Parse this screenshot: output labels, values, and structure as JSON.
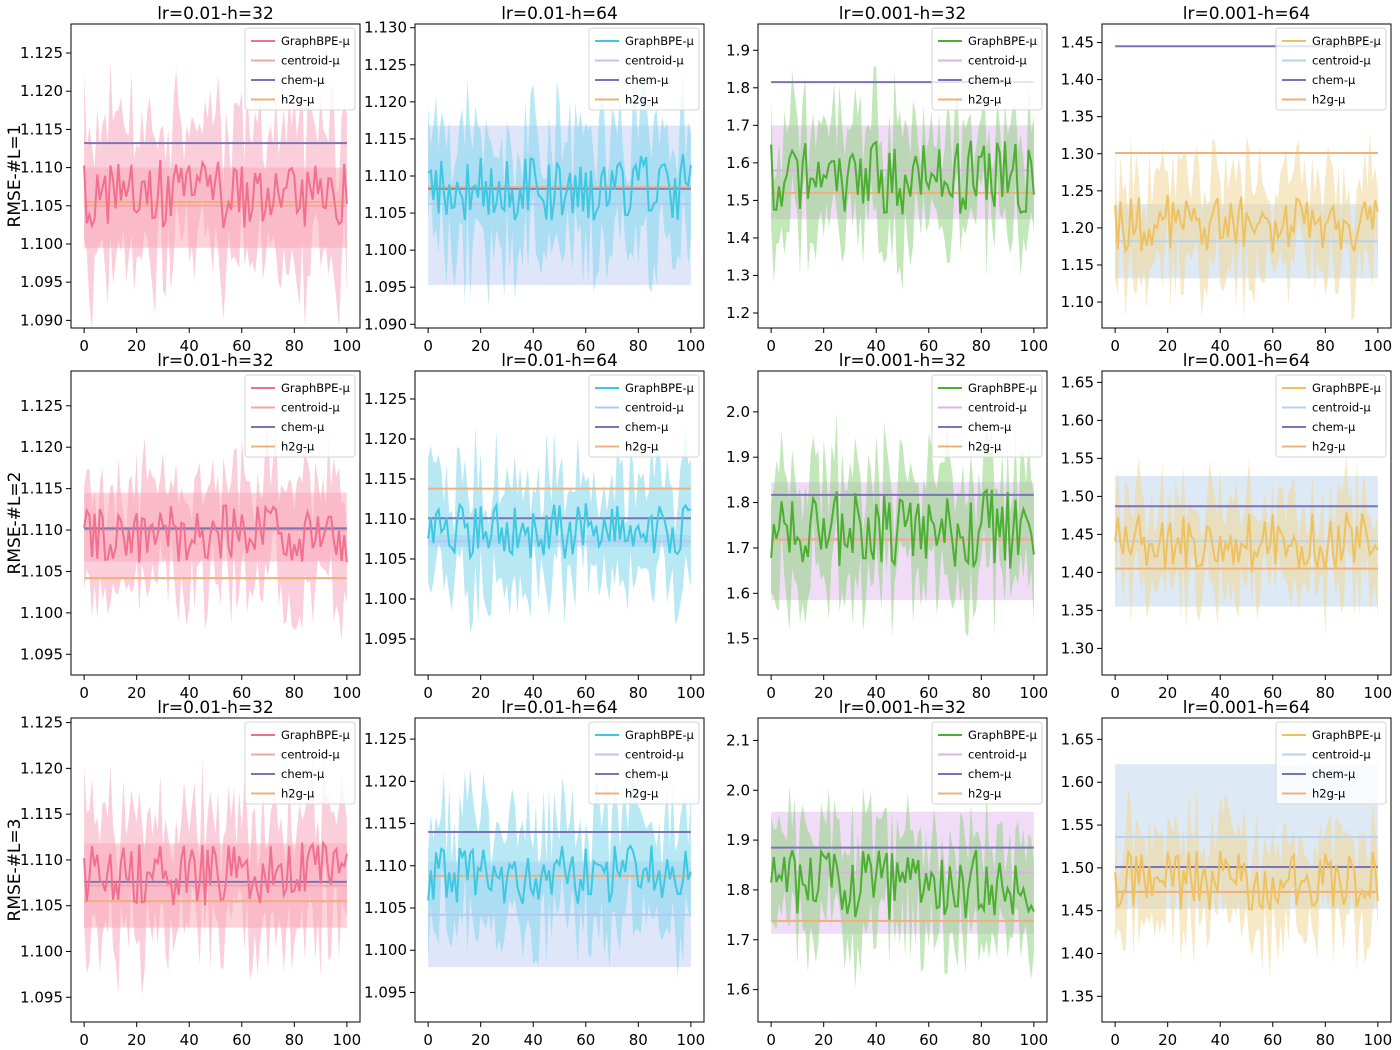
{
  "figure": {
    "row_labels": [
      "RMSE-#L=1",
      "RMSE-#L=2",
      "RMSE-#L=3"
    ],
    "col_titles": [
      "lr=0.01-h=32",
      "lr=0.01-h=64",
      "lr=0.001-h=32",
      "lr=0.001-h=64"
    ],
    "legend_labels": [
      "GraphBPE-μ",
      "centroid-μ",
      "chem-μ",
      "h2g-μ"
    ]
  },
  "chart_data": [
    {
      "type": "line",
      "row": 0,
      "col": 0,
      "title": "lr=0.01-h=32",
      "ylabel": "RMSE-#L=1",
      "xlim": [
        -5,
        105
      ],
      "xticks": [
        0,
        20,
        40,
        60,
        80,
        100
      ],
      "ylim": [
        1.089,
        1.1288
      ],
      "yticks": [
        1.09,
        1.095,
        1.1,
        1.105,
        1.11,
        1.115,
        1.12,
        1.125
      ],
      "ydec": 3,
      "palette": "pink",
      "legend": [
        "GraphBPE-μ",
        "centroid-μ",
        "chem-μ",
        "h2g-μ"
      ],
      "graphbpe": {
        "center": 1.1065,
        "swing": 0.0045,
        "band": 0.012,
        "seed": 11
      },
      "centroid": {
        "value": 1.105,
        "band_low": 1.0995,
        "band_high": 1.11
      },
      "chem": 1.1132,
      "h2g": 1.1055
    },
    {
      "type": "line",
      "row": 0,
      "col": 1,
      "title": "lr=0.01-h=64",
      "ylabel": "",
      "xlim": [
        -5,
        105
      ],
      "xticks": [
        0,
        20,
        40,
        60,
        80,
        100
      ],
      "ylim": [
        1.0895,
        1.1305
      ],
      "yticks": [
        1.09,
        1.095,
        1.1,
        1.105,
        1.11,
        1.115,
        1.12,
        1.125,
        1.13
      ],
      "ydec": 3,
      "palette": "blue",
      "legend": [
        "GraphBPE-μ",
        "centroid-μ",
        "chem-μ",
        "h2g-μ"
      ],
      "graphbpe": {
        "center": 1.1085,
        "swing": 0.0045,
        "band": 0.011,
        "seed": 23
      },
      "centroid": {
        "value": 1.1062,
        "band_low": 1.0953,
        "band_high": 1.1168
      },
      "chem": 1.1083,
      "h2g": 1.1085
    },
    {
      "type": "line",
      "row": 0,
      "col": 2,
      "title": "lr=0.001-h=32",
      "ylabel": "",
      "xlim": [
        -5,
        105
      ],
      "xticks": [
        0,
        20,
        40,
        60,
        80,
        100
      ],
      "ylim": [
        1.16,
        1.97
      ],
      "yticks": [
        1.2,
        1.3,
        1.4,
        1.5,
        1.6,
        1.7,
        1.8,
        1.9
      ],
      "ydec": 1,
      "palette": "green",
      "legend": [
        "GraphBPE-μ",
        "centroid-μ",
        "chem-μ",
        "h2g-μ"
      ],
      "graphbpe": {
        "center": 1.56,
        "swing": 0.1,
        "band": 0.19,
        "seed": 37
      },
      "centroid": {
        "value": 1.58,
        "band_low": 1.45,
        "band_high": 1.7
      },
      "chem": 1.815,
      "h2g": 1.52
    },
    {
      "type": "line",
      "row": 0,
      "col": 3,
      "title": "lr=0.001-h=64",
      "ylabel": "",
      "xlim": [
        -5,
        105
      ],
      "xticks": [
        0,
        20,
        40,
        60,
        80,
        100
      ],
      "ylim": [
        1.065,
        1.475
      ],
      "yticks": [
        1.1,
        1.15,
        1.2,
        1.25,
        1.3,
        1.35,
        1.4,
        1.45
      ],
      "ydec": 2,
      "palette": "yellow",
      "legend": [
        "GraphBPE-μ",
        "centroid-μ",
        "chem-μ",
        "h2g-μ"
      ],
      "graphbpe": {
        "center": 1.205,
        "swing": 0.04,
        "band": 0.09,
        "seed": 41
      },
      "centroid": {
        "value": 1.182,
        "band_low": 1.132,
        "band_high": 1.232
      },
      "chem": 1.445,
      "h2g": 1.301
    },
    {
      "type": "line",
      "row": 1,
      "col": 0,
      "title": "lr=0.01-h=32",
      "ylabel": "RMSE-#L=2",
      "xlim": [
        -5,
        105
      ],
      "xticks": [
        0,
        20,
        40,
        60,
        80,
        100
      ],
      "ylim": [
        1.0925,
        1.1292
      ],
      "yticks": [
        1.095,
        1.1,
        1.105,
        1.11,
        1.115,
        1.12,
        1.125
      ],
      "ydec": 3,
      "palette": "pink",
      "legend": [
        "GraphBPE-μ",
        "centroid-μ",
        "chem-μ",
        "h2g-μ"
      ],
      "graphbpe": {
        "center": 1.1095,
        "swing": 0.0035,
        "band": 0.009,
        "seed": 53
      },
      "centroid": {
        "value": 1.11,
        "band_low": 1.1062,
        "band_high": 1.1145
      },
      "chem": 1.1102,
      "h2g": 1.1042
    },
    {
      "type": "line",
      "row": 1,
      "col": 1,
      "title": "lr=0.01-h=64",
      "ylabel": "",
      "xlim": [
        -5,
        105
      ],
      "xticks": [
        0,
        20,
        40,
        60,
        80,
        100
      ],
      "ylim": [
        1.0905,
        1.1285
      ],
      "yticks": [
        1.095,
        1.1,
        1.105,
        1.11,
        1.115,
        1.12,
        1.125
      ],
      "ydec": 3,
      "palette": "blue",
      "legend": [
        "GraphBPE-μ",
        "centroid-μ",
        "chem-μ",
        "h2g-μ"
      ],
      "graphbpe": {
        "center": 1.1085,
        "swing": 0.0035,
        "band": 0.009,
        "seed": 61
      },
      "centroid": {
        "value": 1.1072,
        "band_low": 1.1065,
        "band_high": 1.108
      },
      "chem": 1.1101,
      "h2g": 1.1138
    },
    {
      "type": "line",
      "row": 1,
      "col": 2,
      "title": "lr=0.001-h=32",
      "ylabel": "",
      "xlim": [
        -5,
        105
      ],
      "xticks": [
        0,
        20,
        40,
        60,
        80,
        100
      ],
      "ylim": [
        1.42,
        2.09
      ],
      "yticks": [
        1.5,
        1.6,
        1.7,
        1.8,
        1.9,
        2.0
      ],
      "ydec": 1,
      "palette": "green",
      "legend": [
        "GraphBPE-μ",
        "centroid-μ",
        "chem-μ",
        "h2g-μ"
      ],
      "graphbpe": {
        "center": 1.74,
        "swing": 0.09,
        "band": 0.16,
        "seed": 73
      },
      "centroid": {
        "value": 1.72,
        "band_low": 1.585,
        "band_high": 1.845
      },
      "chem": 1.817,
      "h2g": 1.718
    },
    {
      "type": "line",
      "row": 1,
      "col": 3,
      "title": "lr=0.001-h=64",
      "ylabel": "",
      "xlim": [
        -5,
        105
      ],
      "xticks": [
        0,
        20,
        40,
        60,
        80,
        100
      ],
      "ylim": [
        1.265,
        1.665
      ],
      "yticks": [
        1.3,
        1.35,
        1.4,
        1.45,
        1.5,
        1.55,
        1.6,
        1.65
      ],
      "ydec": 2,
      "palette": "yellow",
      "legend": [
        "GraphBPE-μ",
        "centroid-μ",
        "chem-μ",
        "h2g-μ"
      ],
      "graphbpe": {
        "center": 1.44,
        "swing": 0.04,
        "band": 0.08,
        "seed": 83
      },
      "centroid": {
        "value": 1.441,
        "band_low": 1.355,
        "band_high": 1.527
      },
      "chem": 1.487,
      "h2g": 1.405
    },
    {
      "type": "line",
      "row": 2,
      "col": 0,
      "title": "lr=0.01-h=32",
      "ylabel": "RMSE-#L=3",
      "xlim": [
        -5,
        105
      ],
      "xticks": [
        0,
        20,
        40,
        60,
        80,
        100
      ],
      "ylim": [
        1.0923,
        1.1255
      ],
      "yticks": [
        1.095,
        1.1,
        1.105,
        1.11,
        1.115,
        1.12,
        1.125
      ],
      "ydec": 3,
      "palette": "pink",
      "legend": [
        "GraphBPE-μ",
        "centroid-μ",
        "chem-μ",
        "h2g-μ"
      ],
      "graphbpe": {
        "center": 1.1085,
        "swing": 0.0035,
        "band": 0.009,
        "seed": 97
      },
      "centroid": {
        "value": 1.1072,
        "band_low": 1.1026,
        "band_high": 1.1118
      },
      "chem": 1.1076,
      "h2g": 1.1055
    },
    {
      "type": "line",
      "row": 2,
      "col": 1,
      "title": "lr=0.01-h=64",
      "ylabel": "",
      "xlim": [
        -5,
        105
      ],
      "xticks": [
        0,
        20,
        40,
        60,
        80,
        100
      ],
      "ylim": [
        1.0915,
        1.1275
      ],
      "yticks": [
        1.095,
        1.1,
        1.105,
        1.11,
        1.115,
        1.12,
        1.125
      ],
      "ydec": 3,
      "palette": "blue",
      "legend": [
        "GraphBPE-μ",
        "centroid-μ",
        "chem-μ",
        "h2g-μ"
      ],
      "graphbpe": {
        "center": 1.109,
        "swing": 0.0035,
        "band": 0.009,
        "seed": 103
      },
      "centroid": {
        "value": 1.1042,
        "band_low": 1.098,
        "band_high": 1.1105
      },
      "chem": 1.114,
      "h2g": 1.1088
    },
    {
      "type": "line",
      "row": 2,
      "col": 2,
      "title": "lr=0.001-h=32",
      "ylabel": "",
      "xlim": [
        -5,
        105
      ],
      "xticks": [
        0,
        20,
        40,
        60,
        80,
        100
      ],
      "ylim": [
        1.535,
        2.145
      ],
      "yticks": [
        1.6,
        1.7,
        1.8,
        1.9,
        2.0,
        2.1
      ],
      "ydec": 1,
      "palette": "green",
      "legend": [
        "GraphBPE-μ",
        "centroid-μ",
        "chem-μ",
        "h2g-μ"
      ],
      "graphbpe": {
        "center": 1.81,
        "swing": 0.07,
        "band": 0.14,
        "seed": 109
      },
      "centroid": {
        "value": 1.835,
        "band_low": 1.712,
        "band_high": 1.957
      },
      "chem": 1.885,
      "h2g": 1.738
    },
    {
      "type": "line",
      "row": 2,
      "col": 3,
      "title": "lr=0.001-h=64",
      "ylabel": "",
      "xlim": [
        -5,
        105
      ],
      "xticks": [
        0,
        20,
        40,
        60,
        80,
        100
      ],
      "ylim": [
        1.32,
        1.675
      ],
      "yticks": [
        1.35,
        1.4,
        1.45,
        1.5,
        1.55,
        1.6,
        1.65
      ],
      "ydec": 2,
      "palette": "yellow",
      "legend": [
        "GraphBPE-μ",
        "centroid-μ",
        "chem-μ",
        "h2g-μ"
      ],
      "graphbpe": {
        "center": 1.485,
        "swing": 0.035,
        "band": 0.07,
        "seed": 127
      },
      "centroid": {
        "value": 1.536,
        "band_low": 1.452,
        "band_high": 1.621
      },
      "chem": 1.501,
      "h2g": 1.472
    }
  ],
  "colors": {
    "pink": {
      "line": "#f2708f",
      "band": "#f7a6bd",
      "centroid": "#f4a6a4",
      "centroid_band": "#fbb6bd"
    },
    "blue": {
      "line": "#3ec8e2",
      "band": "#7fd6ec",
      "centroid": "#b4c8f0",
      "centroid_band": "#c9d6f6"
    },
    "green": {
      "line": "#4caf32",
      "band": "#8fd37e",
      "centroid": "#e0b0ec",
      "centroid_band": "#e7c5f3"
    },
    "yellow": {
      "line": "#efc25f",
      "band": "#f1d798",
      "centroid": "#b9d3ea",
      "centroid_band": "#c7dbed"
    },
    "chem": "#7b72b8",
    "h2g": "#f0b07a",
    "axes": "#000000"
  }
}
